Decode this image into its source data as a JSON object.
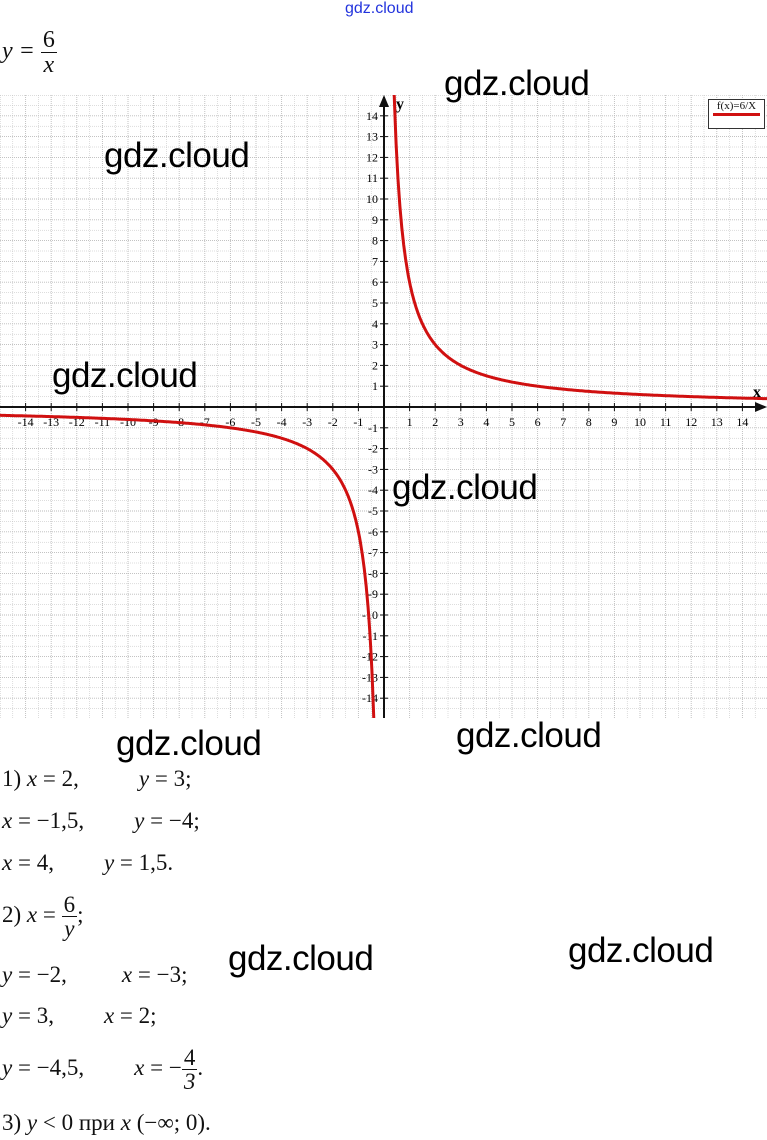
{
  "watermark_top": "gdz.cloud",
  "watermark": "gdz.cloud",
  "formula": {
    "lhs": "y =",
    "num": "6",
    "den": "x"
  },
  "chart_data": {
    "type": "line",
    "title": "",
    "function": "y = 6/x",
    "xlabel": "x",
    "ylabel": "y",
    "xlim": [
      -15,
      15
    ],
    "ylim": [
      -15,
      15
    ],
    "grid": true,
    "legend_position": "top-right",
    "series": [
      {
        "name": "f(x)=6/X",
        "color": "#d01010"
      }
    ],
    "x_ticks": [
      -14,
      -13,
      -12,
      -11,
      -10,
      -9,
      -8,
      -7,
      -6,
      -5,
      -4,
      -3,
      -2,
      -1,
      1,
      2,
      3,
      4,
      5,
      6,
      7,
      8,
      9,
      10,
      11,
      12,
      13,
      14
    ],
    "y_ticks": [
      -14,
      -13,
      -12,
      -11,
      -10,
      -9,
      -8,
      -7,
      -6,
      -5,
      -4,
      -3,
      -2,
      -1,
      1,
      2,
      3,
      4,
      5,
      6,
      7,
      8,
      9,
      10,
      11,
      12,
      13,
      14
    ]
  },
  "solution": {
    "p1": [
      "1) ",
      "x",
      " = 2,",
      "y",
      " = 3;"
    ],
    "p1b": [
      "x",
      " = −1,5,",
      "y",
      " = −4;"
    ],
    "p1c": [
      "x",
      " = 4,",
      "y",
      " = 1,5."
    ],
    "p2": {
      "pre": "2) ",
      "var": "x",
      "eq": " = ",
      "num": "6",
      "den": "y",
      "post": ";"
    },
    "p2a": [
      "y",
      " = −2,",
      "x",
      " = −3;"
    ],
    "p2b": [
      "y",
      " = 3,",
      "x",
      " = 2;"
    ],
    "p2c": {
      "y": "y",
      "yv": " = −4,5,",
      "x": "x",
      "eq": " = −",
      "num": "4",
      "den": "3",
      "post": "."
    },
    "p3": [
      "3) ",
      "y",
      " < 0 при ",
      "x",
      " (−∞; 0)."
    ]
  }
}
